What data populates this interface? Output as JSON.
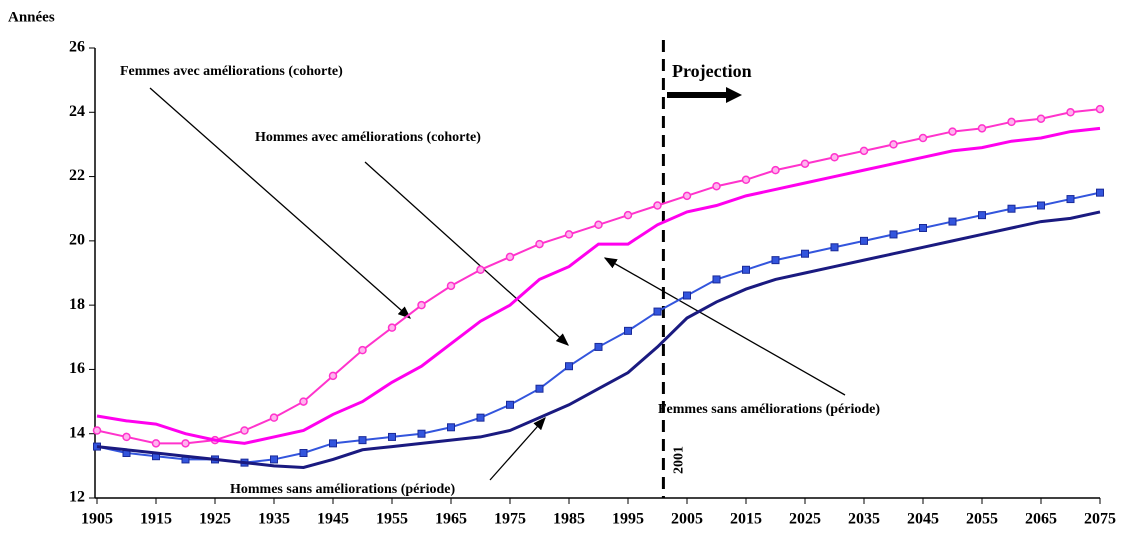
{
  "chart_data": {
    "type": "line",
    "y_label": "Années",
    "x": [
      1905,
      1910,
      1915,
      1920,
      1925,
      1930,
      1935,
      1940,
      1945,
      1950,
      1955,
      1960,
      1965,
      1970,
      1975,
      1980,
      1985,
      1990,
      1995,
      2000,
      2005,
      2010,
      2015,
      2020,
      2025,
      2030,
      2035,
      2040,
      2045,
      2050,
      2055,
      2060,
      2065,
      2070,
      2075
    ],
    "series": [
      {
        "name": "Femmes avec améliorations (cohorte)",
        "color": "#ff33cc",
        "marker": "circle",
        "values": [
          14.1,
          13.9,
          13.7,
          13.7,
          13.8,
          14.1,
          14.5,
          15.0,
          15.8,
          16.6,
          17.3,
          18.0,
          18.6,
          19.1,
          19.5,
          19.9,
          20.2,
          20.5,
          20.8,
          21.1,
          21.4,
          21.7,
          21.9,
          22.2,
          22.4,
          22.6,
          22.8,
          23.0,
          23.2,
          23.4,
          23.5,
          23.7,
          23.8,
          24.0,
          24.1
        ]
      },
      {
        "name": "Hommes avec améliorations (cohorte)",
        "color": "#3355dd",
        "marker": "square",
        "values": [
          13.6,
          13.4,
          13.3,
          13.2,
          13.2,
          13.1,
          13.2,
          13.4,
          13.7,
          13.8,
          13.9,
          14.0,
          14.2,
          14.5,
          14.9,
          15.4,
          16.1,
          16.7,
          17.2,
          17.8,
          18.3,
          18.8,
          19.1,
          19.4,
          19.6,
          19.8,
          20.0,
          20.2,
          20.4,
          20.6,
          20.8,
          21.0,
          21.1,
          21.3,
          21.5
        ]
      },
      {
        "name": "Femmes sans améliorations (période)",
        "color": "#ff00ee",
        "marker": null,
        "values": [
          14.55,
          14.4,
          14.3,
          14.0,
          13.8,
          13.7,
          13.9,
          14.1,
          14.6,
          15.0,
          15.6,
          16.1,
          16.8,
          17.5,
          18.0,
          18.8,
          19.2,
          19.9,
          19.9,
          20.5,
          20.9,
          21.1,
          21.4,
          21.6,
          21.8,
          22.0,
          22.2,
          22.4,
          22.6,
          22.8,
          22.9,
          23.1,
          23.2,
          23.4,
          23.5
        ]
      },
      {
        "name": "Hommes sans améliorations (période)",
        "color": "#1a1a80",
        "marker": null,
        "values": [
          13.6,
          13.5,
          13.4,
          13.3,
          13.2,
          13.1,
          13.0,
          12.95,
          13.2,
          13.5,
          13.6,
          13.7,
          13.8,
          13.9,
          14.1,
          14.5,
          14.9,
          15.4,
          15.9,
          16.7,
          17.6,
          18.1,
          18.5,
          18.8,
          19.0,
          19.2,
          19.4,
          19.6,
          19.8,
          20.0,
          20.2,
          20.4,
          20.6,
          20.7,
          20.9
        ]
      }
    ],
    "xlim": [
      1905,
      2075
    ],
    "xticks": [
      1905,
      1915,
      1925,
      1935,
      1945,
      1955,
      1965,
      1975,
      1985,
      1995,
      2005,
      2015,
      2025,
      2035,
      2045,
      2055,
      2065,
      2075
    ],
    "ylim": [
      12,
      26
    ],
    "yticks": [
      12,
      14,
      16,
      18,
      20,
      22,
      24,
      26
    ],
    "grid": false,
    "vline": {
      "x": 2001,
      "label": "2001"
    },
    "projection_label": "Projection"
  }
}
